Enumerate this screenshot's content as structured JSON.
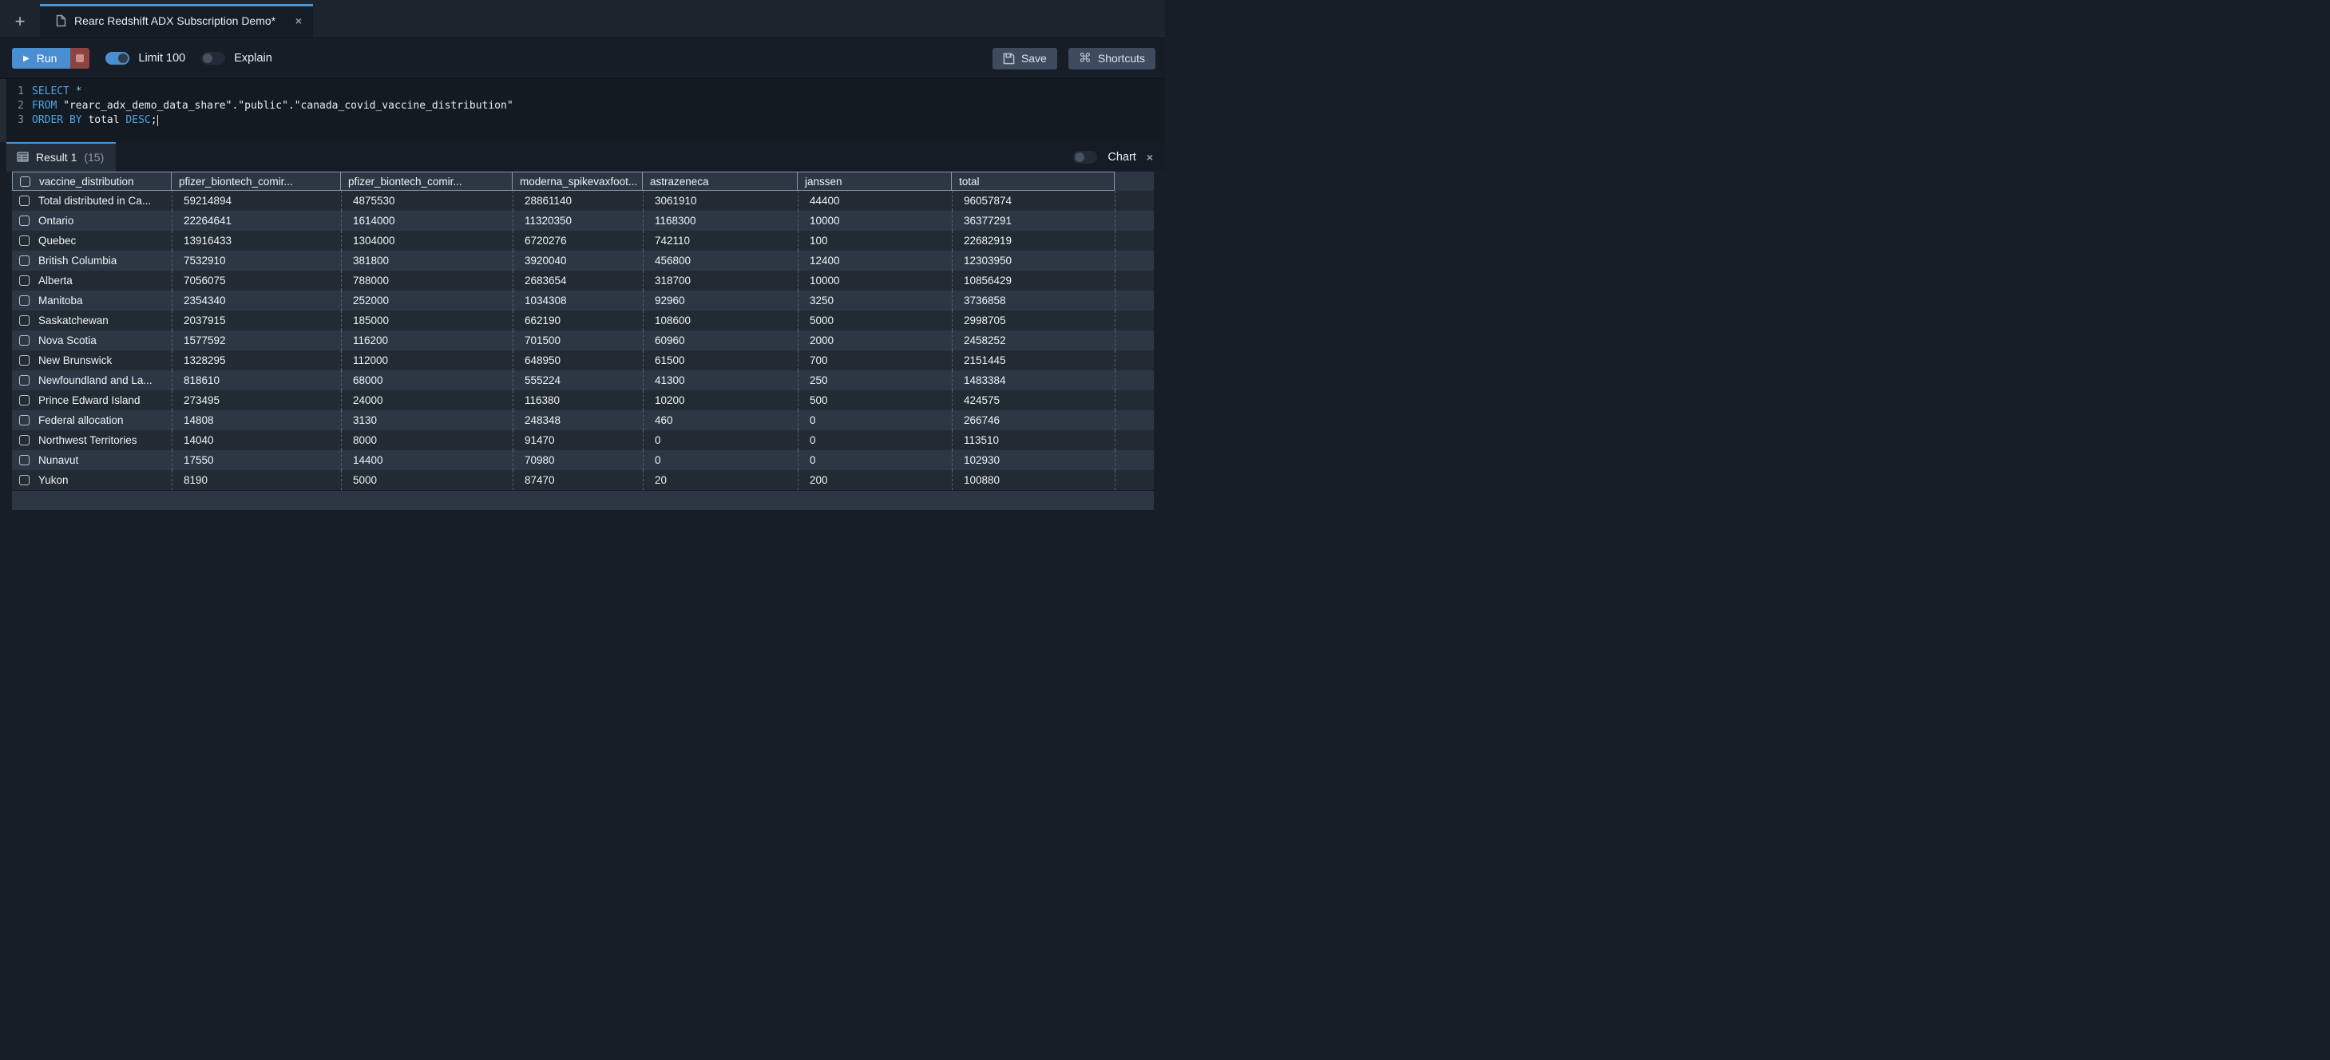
{
  "window": {
    "new_tab_label": "+",
    "tab_title": "Rearc Redshift ADX Subscription Demo*",
    "tab_close": "×"
  },
  "toolbar": {
    "run_label": "Run",
    "limit_label": "Limit 100",
    "limit_state": "on",
    "explain_label": "Explain",
    "explain_state": "off",
    "save_label": "Save",
    "shortcuts_label": "Shortcuts"
  },
  "editor": {
    "lines": [
      {
        "num": "1",
        "tokens": [
          {
            "c": "kw",
            "v": "SELECT "
          },
          {
            "c": "star",
            "v": "*"
          }
        ]
      },
      {
        "num": "2",
        "tokens": [
          {
            "c": "kw",
            "v": "FROM "
          },
          {
            "c": "plain",
            "v": "\"rearc_adx_demo_data_share\".\"public\".\"canada_covid_vaccine_distribution\""
          }
        ]
      },
      {
        "num": "3",
        "tokens": [
          {
            "c": "kw",
            "v": "ORDER BY "
          },
          {
            "c": "plain",
            "v": "total "
          },
          {
            "c": "kw",
            "v": "DESC"
          },
          {
            "c": "plain",
            "v": ";"
          },
          {
            "c": "cursor",
            "v": ""
          }
        ]
      }
    ]
  },
  "results": {
    "tab_label": "Result 1",
    "tab_count": "(15)",
    "chart_label": "Chart",
    "chart_state": "off",
    "panel_close": "×",
    "columns": [
      "vaccine_distribution",
      "pfizer_biontech_comir...",
      "pfizer_biontech_comir...",
      "moderna_spikevaxfoot...",
      "astrazeneca",
      "janssen",
      "total"
    ],
    "rows": [
      [
        "Total distributed in Ca...",
        "59214894",
        "4875530",
        "28861140",
        "3061910",
        "44400",
        "96057874"
      ],
      [
        "Ontario",
        "22264641",
        "1614000",
        "11320350",
        "1168300",
        "10000",
        "36377291"
      ],
      [
        "Quebec",
        "13916433",
        "1304000",
        "6720276",
        "742110",
        "100",
        "22682919"
      ],
      [
        "British Columbia",
        "7532910",
        "381800",
        "3920040",
        "456800",
        "12400",
        "12303950"
      ],
      [
        "Alberta",
        "7056075",
        "788000",
        "2683654",
        "318700",
        "10000",
        "10856429"
      ],
      [
        "Manitoba",
        "2354340",
        "252000",
        "1034308",
        "92960",
        "3250",
        "3736858"
      ],
      [
        "Saskatchewan",
        "2037915",
        "185000",
        "662190",
        "108600",
        "5000",
        "2998705"
      ],
      [
        "Nova Scotia",
        "1577592",
        "116200",
        "701500",
        "60960",
        "2000",
        "2458252"
      ],
      [
        "New Brunswick",
        "1328295",
        "112000",
        "648950",
        "61500",
        "700",
        "2151445"
      ],
      [
        "Newfoundland and La...",
        "818610",
        "68000",
        "555224",
        "41300",
        "250",
        "1483384"
      ],
      [
        "Prince Edward Island",
        "273495",
        "24000",
        "116380",
        "10200",
        "500",
        "424575"
      ],
      [
        "Federal allocation",
        "14808",
        "3130",
        "248348",
        "460",
        "0",
        "266746"
      ],
      [
        "Northwest Territories",
        "14040",
        "8000",
        "91470",
        "0",
        "0",
        "113510"
      ],
      [
        "Nunavut",
        "17550",
        "14400",
        "70980",
        "0",
        "0",
        "102930"
      ],
      [
        "Yukon",
        "8190",
        "5000",
        "87470",
        "20",
        "200",
        "100880"
      ]
    ]
  },
  "colors": {
    "accent_blue": "#4c92d9",
    "run_button": "#4a8ed2",
    "stop_button": "#8e4343",
    "keyword_blue": "#4fa3e3",
    "star_teal": "#62d6bf"
  }
}
